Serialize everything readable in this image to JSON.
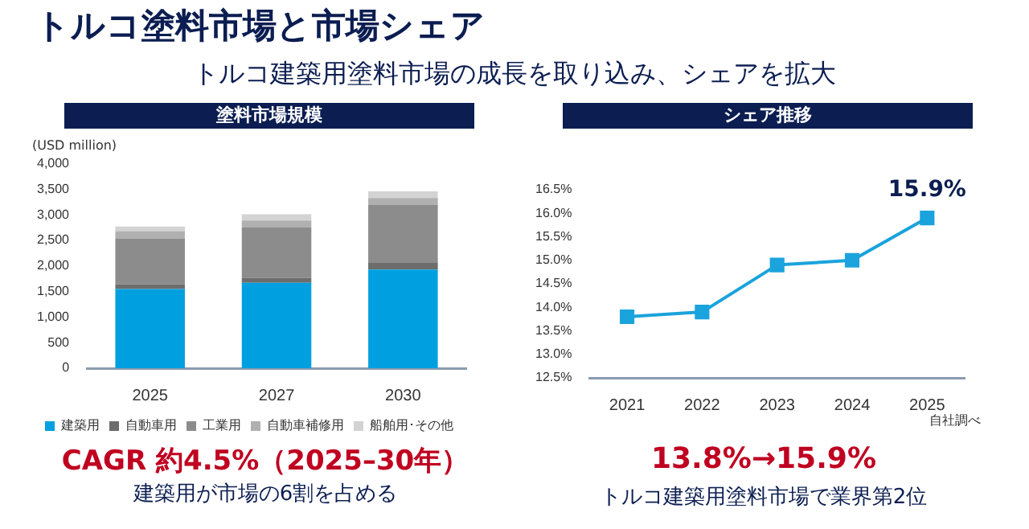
{
  "chart_data": [
    {
      "type": "other",
      "title": "トルコ塗料市場と市場シェア",
      "subtitle": "トルコ建築用塗料市場の成長を取り込み、シェアを拡大"
    },
    {
      "type": "bar",
      "title": "塗料市場規模",
      "ylabel": "(USD million)",
      "categories": [
        "2025",
        "2027",
        "2030"
      ],
      "stacked": true,
      "series": [
        {
          "name": "建築用",
          "color": "#00a0e0",
          "values": [
            1550,
            1670,
            1930
          ]
        },
        {
          "name": "自動車用",
          "color": "#6d6d6d",
          "values": [
            90,
            100,
            130
          ]
        },
        {
          "name": "工業用",
          "color": "#8c8c8c",
          "values": [
            900,
            980,
            1140
          ]
        },
        {
          "name": "自動車補修用",
          "color": "#b0b0b0",
          "values": [
            140,
            140,
            130
          ]
        },
        {
          "name": "船舶用･その他",
          "color": "#d3d3d3",
          "values": [
            90,
            120,
            130
          ]
        }
      ],
      "ylim": [
        0,
        4000
      ],
      "yticks": [
        0,
        {
          "value": 500,
          "label": "500"
        },
        {
          "value": 1000,
          "label": "1,000"
        },
        {
          "value": 1500,
          "label": "1,500"
        },
        {
          "value": 2000,
          "label": "2,000"
        },
        {
          "value": 2500,
          "label": "2,500"
        },
        {
          "value": 3000,
          "label": "3,000"
        },
        {
          "value": 3500,
          "label": "3,500"
        },
        {
          "value": 4000,
          "label": "4,000"
        }
      ],
      "grid": false,
      "legend": "bottom",
      "annotations": [
        "CAGR 約4.5%（2025–30年）",
        "建築用が市場の6割を占める"
      ]
    },
    {
      "type": "line",
      "title": "シェア推移",
      "categories": [
        "2021",
        "2022",
        "2023",
        "2024",
        "2025"
      ],
      "values": [
        13.8,
        13.9,
        14.9,
        15.0,
        15.9
      ],
      "color": "#1aa3dc",
      "value_labels": [
        null,
        null,
        null,
        null,
        "15.9%"
      ],
      "marker": "square",
      "line_style": "solid",
      "grid": false,
      "ylim": [
        12.5,
        16.5
      ],
      "yticks": [
        {
          "value": 12.5,
          "label": "12.5%"
        },
        {
          "value": 13,
          "label": "13.0%"
        },
        {
          "value": 13.5,
          "label": "13.5%"
        },
        {
          "value": 14,
          "label": "14.0%"
        },
        {
          "value": 14.5,
          "label": "14.5%"
        },
        {
          "value": 15,
          "label": "15.0%"
        },
        {
          "value": 15.5,
          "label": "15.5%"
        },
        {
          "value": 16,
          "label": "16.0%"
        },
        {
          "value": 16.5,
          "label": "16.5%"
        }
      ],
      "annotations": [
        "自社調べ",
        "13.8%→15.9%",
        "トルコ建築用塗料市場で業界第2位"
      ]
    }
  ]
}
